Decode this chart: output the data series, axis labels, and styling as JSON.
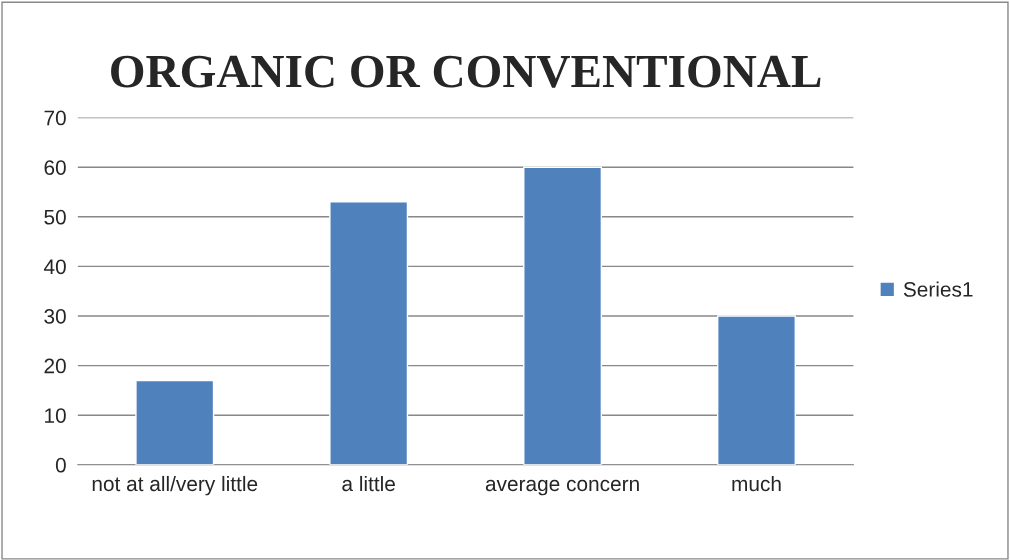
{
  "chart_data": {
    "type": "bar",
    "title": "ORGANIC OR CONVENTIONAL",
    "categories": [
      "not at all/very little",
      "a little",
      "average concern",
      "much"
    ],
    "series": [
      {
        "name": "Series1",
        "color": "#4f81bd",
        "values": [
          17,
          53,
          60,
          30
        ]
      }
    ],
    "ylim": [
      0,
      70
    ],
    "yticks": [
      0,
      10,
      20,
      30,
      40,
      50,
      60,
      70
    ],
    "grid": "y",
    "legend": "right"
  }
}
